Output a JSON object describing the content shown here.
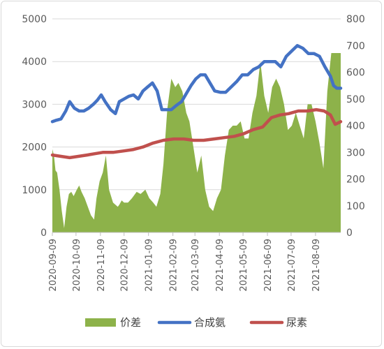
{
  "chart_data": {
    "type": "area+line",
    "categories": [
      "2020-09-09",
      "2020-10-09",
      "2020-11-09",
      "2020-12-09",
      "2021-01-09",
      "2021-02-09",
      "2021-03-09",
      "2021-04-09",
      "2021-05-09",
      "2021-06-09",
      "2021-07-09",
      "2021-08-09"
    ],
    "x_start": "2020-09-09",
    "x_end": "2021-09-10",
    "y_left": {
      "ticks": [
        0,
        1000,
        2000,
        3000,
        4000,
        5000
      ],
      "range": [
        0,
        5000
      ]
    },
    "y_right": {
      "ticks": [
        0,
        100,
        200,
        300,
        400,
        500,
        600,
        700,
        800
      ],
      "range": [
        0,
        800
      ]
    },
    "grid": "horizontal",
    "legend_position": "bottom",
    "colors": {
      "area": "#8db24a",
      "line_blue": "#4472c4",
      "line_red": "#c0504d"
    },
    "series": [
      {
        "name": "价差",
        "axis": "left",
        "kind": "area",
        "color": "#8db24a",
        "x": [
          "2020-09-09",
          "2020-09-11",
          "2020-09-13",
          "2020-09-15",
          "2020-09-18",
          "2020-09-21",
          "2020-09-24",
          "2020-09-27",
          "2020-09-30",
          "2020-10-03",
          "2020-10-06",
          "2020-10-10",
          "2020-10-13",
          "2020-10-16",
          "2020-10-20",
          "2020-10-24",
          "2020-10-28",
          "2020-11-01",
          "2020-11-04",
          "2020-11-08",
          "2020-11-12",
          "2020-11-16",
          "2020-11-20",
          "2020-11-25",
          "2020-11-28",
          "2020-12-01",
          "2020-12-03",
          "2020-12-06",
          "2020-12-09",
          "2020-12-14",
          "2020-12-19",
          "2020-12-25",
          "2020-12-30",
          "2021-01-05",
          "2021-01-10",
          "2021-01-15",
          "2021-01-19",
          "2021-01-24",
          "2021-01-28",
          "2021-02-02",
          "2021-02-07",
          "2021-02-12",
          "2021-02-16",
          "2021-02-21",
          "2021-02-26",
          "2021-03-02",
          "2021-03-07",
          "2021-03-12",
          "2021-03-17",
          "2021-03-22",
          "2021-03-27",
          "2021-04-01",
          "2021-04-06",
          "2021-04-11",
          "2021-04-16",
          "2021-04-21",
          "2021-04-26",
          "2021-05-01",
          "2021-05-06",
          "2021-05-11",
          "2021-05-16",
          "2021-05-21",
          "2021-05-26",
          "2021-05-31",
          "2021-06-05",
          "2021-06-10",
          "2021-06-15",
          "2021-06-20",
          "2021-06-25",
          "2021-06-30",
          "2021-07-05",
          "2021-07-10",
          "2021-07-15",
          "2021-07-20",
          "2021-07-25",
          "2021-07-30",
          "2021-08-04",
          "2021-08-09",
          "2021-08-14",
          "2021-08-19",
          "2021-08-24",
          "2021-08-29",
          "2021-09-02",
          "2021-09-06",
          "2021-09-10"
        ],
        "values": [
          1950,
          1800,
          1450,
          1400,
          1000,
          500,
          100,
          600,
          900,
          950,
          850,
          1000,
          1100,
          950,
          800,
          600,
          400,
          300,
          800,
          1200,
          1400,
          1800,
          1000,
          700,
          650,
          600,
          650,
          750,
          700,
          700,
          800,
          950,
          900,
          1000,
          800,
          700,
          600,
          900,
          1600,
          2900,
          3600,
          3400,
          3500,
          3300,
          2800,
          2600,
          2000,
          1400,
          1800,
          1000,
          600,
          500,
          800,
          1000,
          1800,
          2400,
          2500,
          2500,
          2600,
          2200,
          2200,
          2800,
          3200,
          4000,
          3200,
          2800,
          3400,
          3600,
          3400,
          3000,
          2400,
          2500,
          2800,
          2500,
          2200,
          3000,
          3000,
          2600,
          2100,
          1500,
          3300,
          4200,
          4200,
          4200,
          4200
        ]
      },
      {
        "name": "合成氨",
        "axis": "right",
        "kind": "line",
        "color": "#4472c4",
        "x": [
          "2020-09-09",
          "2020-09-14",
          "2020-09-20",
          "2020-09-26",
          "2020-10-01",
          "2020-10-07",
          "2020-10-13",
          "2020-10-19",
          "2020-10-25",
          "2020-10-31",
          "2020-11-05",
          "2020-11-10",
          "2020-11-15",
          "2020-11-22",
          "2020-11-28",
          "2020-12-03",
          "2020-12-09",
          "2020-12-15",
          "2020-12-21",
          "2020-12-27",
          "2021-01-02",
          "2021-01-08",
          "2021-01-14",
          "2021-01-20",
          "2021-01-26",
          "2021-02-01",
          "2021-02-07",
          "2021-02-13",
          "2021-02-20",
          "2021-02-26",
          "2021-03-04",
          "2021-03-10",
          "2021-03-16",
          "2021-03-22",
          "2021-03-28",
          "2021-04-03",
          "2021-04-10",
          "2021-04-17",
          "2021-04-24",
          "2021-05-01",
          "2021-05-08",
          "2021-05-15",
          "2021-05-22",
          "2021-05-29",
          "2021-06-05",
          "2021-06-12",
          "2021-06-19",
          "2021-06-26",
          "2021-07-03",
          "2021-07-10",
          "2021-07-17",
          "2021-07-24",
          "2021-07-31",
          "2021-08-07",
          "2021-08-14",
          "2021-08-21",
          "2021-08-28",
          "2021-09-01",
          "2021-09-05",
          "2021-09-10"
        ],
        "values": [
          415,
          420,
          425,
          455,
          490,
          465,
          455,
          455,
          465,
          480,
          495,
          515,
          490,
          460,
          445,
          490,
          500,
          510,
          515,
          500,
          530,
          545,
          560,
          530,
          460,
          460,
          460,
          475,
          490,
          520,
          550,
          575,
          590,
          590,
          560,
          530,
          525,
          525,
          545,
          565,
          590,
          590,
          610,
          620,
          640,
          640,
          640,
          620,
          660,
          680,
          700,
          690,
          670,
          670,
          660,
          620,
          585,
          550,
          540,
          540
        ]
      },
      {
        "name": "尿素",
        "axis": "right",
        "kind": "line",
        "color": "#c0504d",
        "x": [
          "2020-09-09",
          "2020-09-20",
          "2020-10-01",
          "2020-10-12",
          "2020-10-23",
          "2020-11-02",
          "2020-11-12",
          "2020-11-25",
          "2020-12-08",
          "2020-12-20",
          "2021-01-02",
          "2021-01-15",
          "2021-01-28",
          "2021-02-10",
          "2021-02-23",
          "2021-03-07",
          "2021-03-20",
          "2021-04-02",
          "2021-04-15",
          "2021-04-28",
          "2021-05-10",
          "2021-05-22",
          "2021-06-03",
          "2021-06-14",
          "2021-06-25",
          "2021-07-06",
          "2021-07-18",
          "2021-07-30",
          "2021-08-10",
          "2021-08-20",
          "2021-08-28",
          "2021-09-03",
          "2021-09-10"
        ],
        "values": [
          290,
          285,
          280,
          285,
          290,
          295,
          300,
          300,
          305,
          310,
          320,
          335,
          345,
          350,
          350,
          345,
          345,
          350,
          355,
          360,
          370,
          385,
          395,
          430,
          440,
          445,
          455,
          455,
          460,
          455,
          440,
          405,
          415
        ]
      }
    ]
  }
}
